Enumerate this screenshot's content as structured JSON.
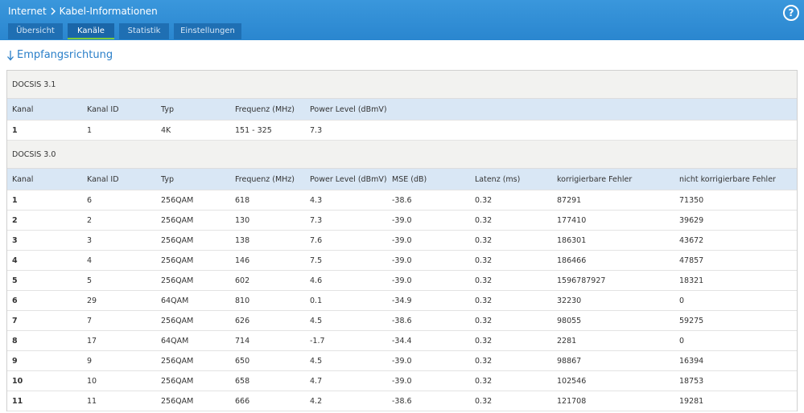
{
  "header": {
    "breadcrumb": [
      "Internet",
      "Kabel-Informationen"
    ],
    "help": "?"
  },
  "tabs": [
    "Übersicht",
    "Kanäle",
    "Statistik",
    "Einstellungen"
  ],
  "heading": "Empfangsrichtung",
  "sections": [
    {
      "title": "DOCSIS 3.1",
      "columns": [
        "Kanal",
        "Kanal ID",
        "Typ",
        "Frequenz (MHz)",
        "Power Level (dBmV)"
      ],
      "rows": [
        [
          "1",
          "1",
          "4K",
          "151 - 325",
          "7.3"
        ]
      ]
    },
    {
      "title": "DOCSIS 3.0",
      "columns": [
        "Kanal",
        "Kanal ID",
        "Typ",
        "Frequenz (MHz)",
        "Power Level (dBmV)",
        "MSE (dB)",
        "Latenz (ms)",
        "korrigierbare Fehler",
        "nicht korrigierbare Fehler"
      ],
      "rows": [
        [
          "1",
          "6",
          "256QAM",
          "618",
          "4.3",
          "-38.6",
          "0.32",
          "87291",
          "71350"
        ],
        [
          "2",
          "2",
          "256QAM",
          "130",
          "7.3",
          "-39.0",
          "0.32",
          "177410",
          "39629"
        ],
        [
          "3",
          "3",
          "256QAM",
          "138",
          "7.6",
          "-39.0",
          "0.32",
          "186301",
          "43672"
        ],
        [
          "4",
          "4",
          "256QAM",
          "146",
          "7.5",
          "-39.0",
          "0.32",
          "186466",
          "47857"
        ],
        [
          "5",
          "5",
          "256QAM",
          "602",
          "4.6",
          "-39.0",
          "0.32",
          "1596787927",
          "18321"
        ],
        [
          "6",
          "29",
          "64QAM",
          "810",
          "0.1",
          "-34.9",
          "0.32",
          "32230",
          "0"
        ],
        [
          "7",
          "7",
          "256QAM",
          "626",
          "4.5",
          "-38.6",
          "0.32",
          "98055",
          "59275"
        ],
        [
          "8",
          "17",
          "64QAM",
          "714",
          "-1.7",
          "-34.4",
          "0.32",
          "2281",
          "0"
        ],
        [
          "9",
          "9",
          "256QAM",
          "650",
          "4.5",
          "-39.0",
          "0.32",
          "98867",
          "16394"
        ],
        [
          "10",
          "10",
          "256QAM",
          "658",
          "4.7",
          "-39.0",
          "0.32",
          "102546",
          "18753"
        ],
        [
          "11",
          "11",
          "256QAM",
          "666",
          "4.2",
          "-38.6",
          "0.32",
          "121708",
          "19281"
        ]
      ]
    }
  ]
}
